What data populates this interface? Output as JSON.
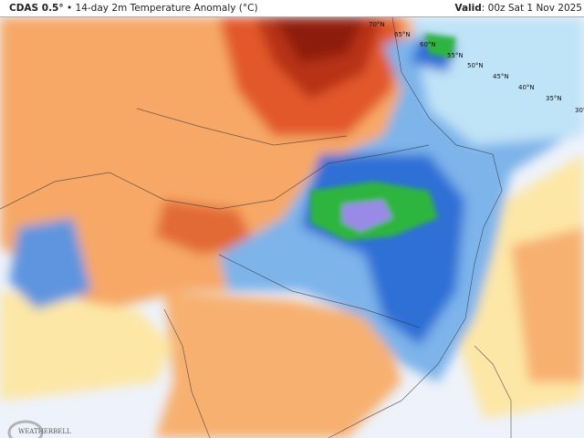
{
  "header": {
    "model": "CDAS 0.5°",
    "separator": "•",
    "product": "14-day 2m Temperature Anomaly (°C)",
    "valid_label": "Valid",
    "valid_time": ": 00z Sat 1 Nov 2025"
  },
  "map": {
    "region": "Asia",
    "latitude_labels": [
      "70°N",
      "65°N",
      "60°N",
      "55°N",
      "50°N",
      "45°N",
      "40°N",
      "35°N",
      "30°"
    ],
    "colors": {
      "ocean_neutral": "#eef2fa",
      "warm_light": "#fde7a6",
      "warm": "#f7a866",
      "warm_strong": "#e2582a",
      "hot": "#8e1a0a",
      "cool_light": "#bfe3f7",
      "cool": "#7db4ea",
      "cold": "#2f6fd6",
      "very_cold": "#2fb53f",
      "extreme_cold": "#9a8ae8"
    }
  },
  "logo": {
    "text": "WeatherBELL"
  }
}
